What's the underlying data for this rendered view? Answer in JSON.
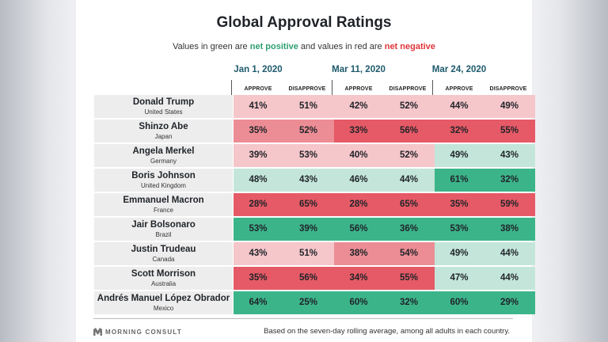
{
  "title": "Global Approval Ratings",
  "subtitle": {
    "prefix": "Values in green are ",
    "positive": "net positive",
    "middle": " and values in red are ",
    "negative": "net negative"
  },
  "colors": {
    "positive_strong": "#3cb48a",
    "positive_light": "#c4e6da",
    "negative_strong": "#e55a66",
    "negative_light": "#f5c6ca",
    "label_bg": "#ededed",
    "period_text": "#1d5a6c"
  },
  "columns": {
    "approve": "APPROVE",
    "disapprove": "DISAPPROVE"
  },
  "footer": {
    "logo": "MORNING CONSULT",
    "note": "Based on the seven-day rolling average, among all adults in each country."
  },
  "chart_data": {
    "type": "table",
    "title": "Global Approval Ratings",
    "periods": [
      "Jan 1, 2020",
      "Mar 11, 2020",
      "Mar 24, 2020"
    ],
    "measures": [
      "APPROVE",
      "DISAPPROVE"
    ],
    "rows": [
      {
        "name": "Donald Trump",
        "country": "United States",
        "values": [
          [
            41,
            51
          ],
          [
            42,
            52
          ],
          [
            44,
            49
          ]
        ]
      },
      {
        "name": "Shinzo Abe",
        "country": "Japan",
        "values": [
          [
            35,
            52
          ],
          [
            33,
            56
          ],
          [
            32,
            55
          ]
        ]
      },
      {
        "name": "Angela Merkel",
        "country": "Germany",
        "values": [
          [
            39,
            53
          ],
          [
            40,
            52
          ],
          [
            49,
            43
          ]
        ]
      },
      {
        "name": "Boris Johnson",
        "country": "United Kingdom",
        "values": [
          [
            48,
            43
          ],
          [
            46,
            44
          ],
          [
            61,
            32
          ]
        ]
      },
      {
        "name": "Emmanuel Macron",
        "country": "France",
        "values": [
          [
            28,
            65
          ],
          [
            28,
            65
          ],
          [
            35,
            59
          ]
        ]
      },
      {
        "name": "Jair Bolsonaro",
        "country": "Brazil",
        "values": [
          [
            53,
            39
          ],
          [
            56,
            36
          ],
          [
            53,
            38
          ]
        ]
      },
      {
        "name": "Justin Trudeau",
        "country": "Canada",
        "values": [
          [
            43,
            51
          ],
          [
            38,
            54
          ],
          [
            49,
            44
          ]
        ]
      },
      {
        "name": "Scott Morrison",
        "country": "Australia",
        "values": [
          [
            35,
            56
          ],
          [
            34,
            55
          ],
          [
            47,
            44
          ]
        ]
      },
      {
        "name": "Andrés Manuel López Obrador",
        "country": "Mexico",
        "values": [
          [
            64,
            25
          ],
          [
            60,
            32
          ],
          [
            60,
            29
          ]
        ]
      }
    ]
  }
}
